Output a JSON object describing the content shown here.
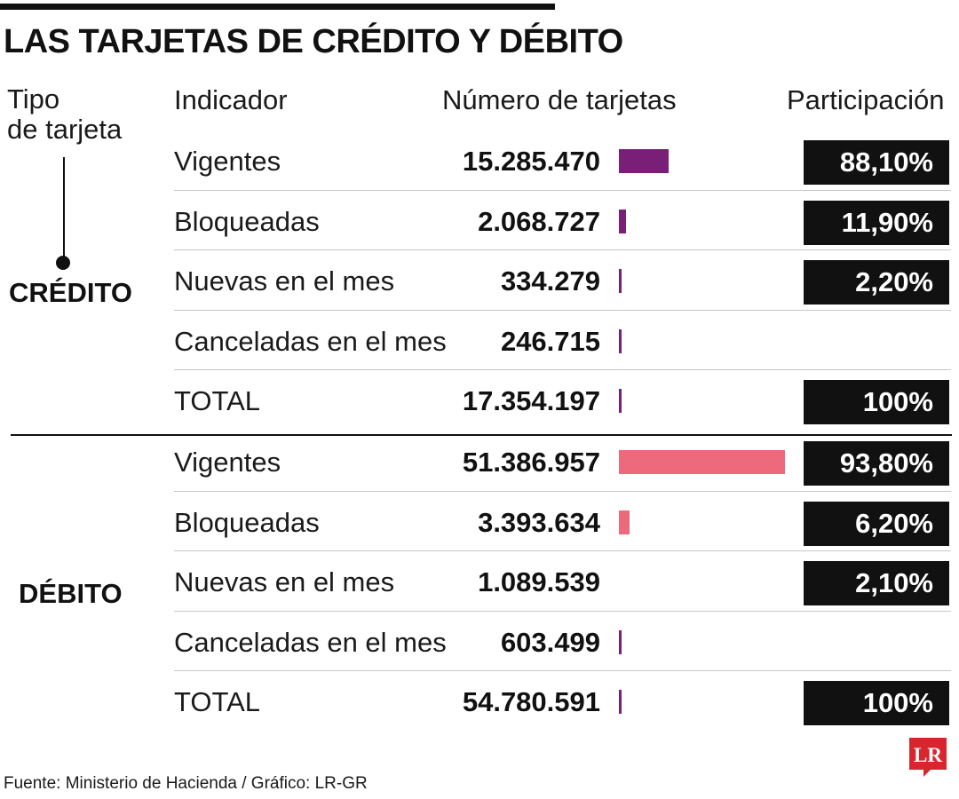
{
  "title": "LAS TARJETAS DE CRÉDITO Y DÉBITO",
  "headers": {
    "tipo_line1": "Tipo",
    "tipo_line2": "de tarjeta",
    "indicador": "Indicador",
    "numero": "Número de tarjetas",
    "participacion": "Participación"
  },
  "colors": {
    "credito": "#7a1f78",
    "debito": "#ed6a7c",
    "badge": "#111111"
  },
  "source": "Fuente: Ministerio de Hacienda / Gráfico: LR-GR",
  "logo_text": "LR",
  "chart_data": {
    "type": "table",
    "title": "LAS TARJETAS DE CRÉDITO Y DÉBITO",
    "columns": [
      "Tipo de tarjeta",
      "Indicador",
      "Número de tarjetas",
      "Participación"
    ],
    "groups": [
      {
        "name": "CRÉDITO",
        "rows": [
          {
            "indicador": "Vigentes",
            "numero": "15.285.470",
            "value": 15285470,
            "participacion": "88,10%"
          },
          {
            "indicador": "Bloqueadas",
            "numero": "2.068.727",
            "value": 2068727,
            "participacion": "11,90%"
          },
          {
            "indicador": "Nuevas en el mes",
            "numero": "334.279",
            "value": 334279,
            "participacion": "2,20%"
          },
          {
            "indicador": "Canceladas en el mes",
            "numero": "246.715",
            "value": 246715,
            "participacion": ""
          },
          {
            "indicador": "TOTAL",
            "numero": "17.354.197",
            "value": 17354197,
            "participacion": "100%"
          }
        ]
      },
      {
        "name": "DÉBITO",
        "rows": [
          {
            "indicador": "Vigentes",
            "numero": "51.386.957",
            "value": 51386957,
            "participacion": "93,80%"
          },
          {
            "indicador": "Bloqueadas",
            "numero": "3.393.634",
            "value": 3393634,
            "participacion": "6,20%"
          },
          {
            "indicador": "Nuevas en el mes",
            "numero": "1.089.539",
            "value": 1089539,
            "participacion": "2,10%"
          },
          {
            "indicador": "Canceladas en el mes",
            "numero": "603.499",
            "value": 603499,
            "participacion": ""
          },
          {
            "indicador": "TOTAL",
            "numero": "54.780.591",
            "value": 54780591,
            "participacion": "100%"
          }
        ]
      }
    ]
  }
}
